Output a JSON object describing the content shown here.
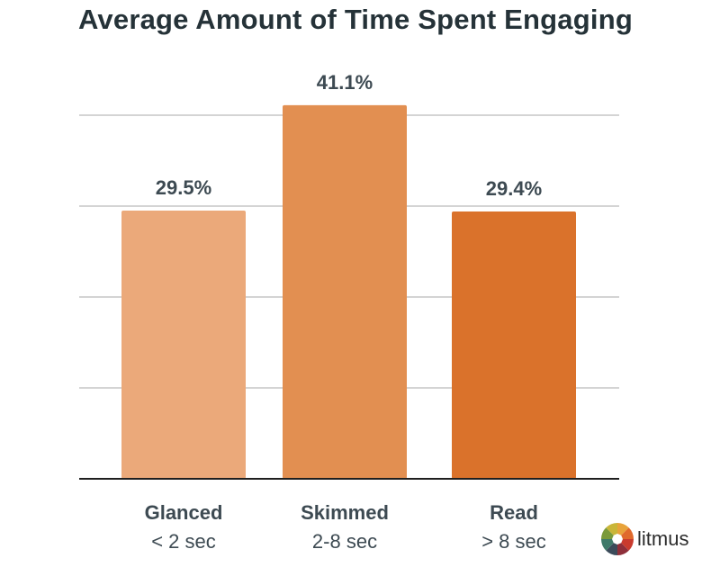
{
  "title": "Average Amount of Time Spent Engaging",
  "chart_data": {
    "type": "bar",
    "title": "Average Amount of Time Spent Engaging",
    "categories": [
      "Glanced",
      "Skimmed",
      "Read"
    ],
    "category_sublabels": [
      "< 2 sec",
      "2-8 sec",
      "> 8 sec"
    ],
    "values": [
      29.5,
      41.1,
      29.4
    ],
    "value_labels": [
      "29.5%",
      "41.1%",
      "29.4%"
    ],
    "colors": [
      "#EBA97A",
      "#E28F51",
      "#DA722B"
    ],
    "ylim": [
      0,
      50
    ],
    "grid": true,
    "xlabel": "",
    "ylabel": ""
  },
  "logo": {
    "text": "litmus",
    "icon": "litmus-color-wheel-icon"
  }
}
